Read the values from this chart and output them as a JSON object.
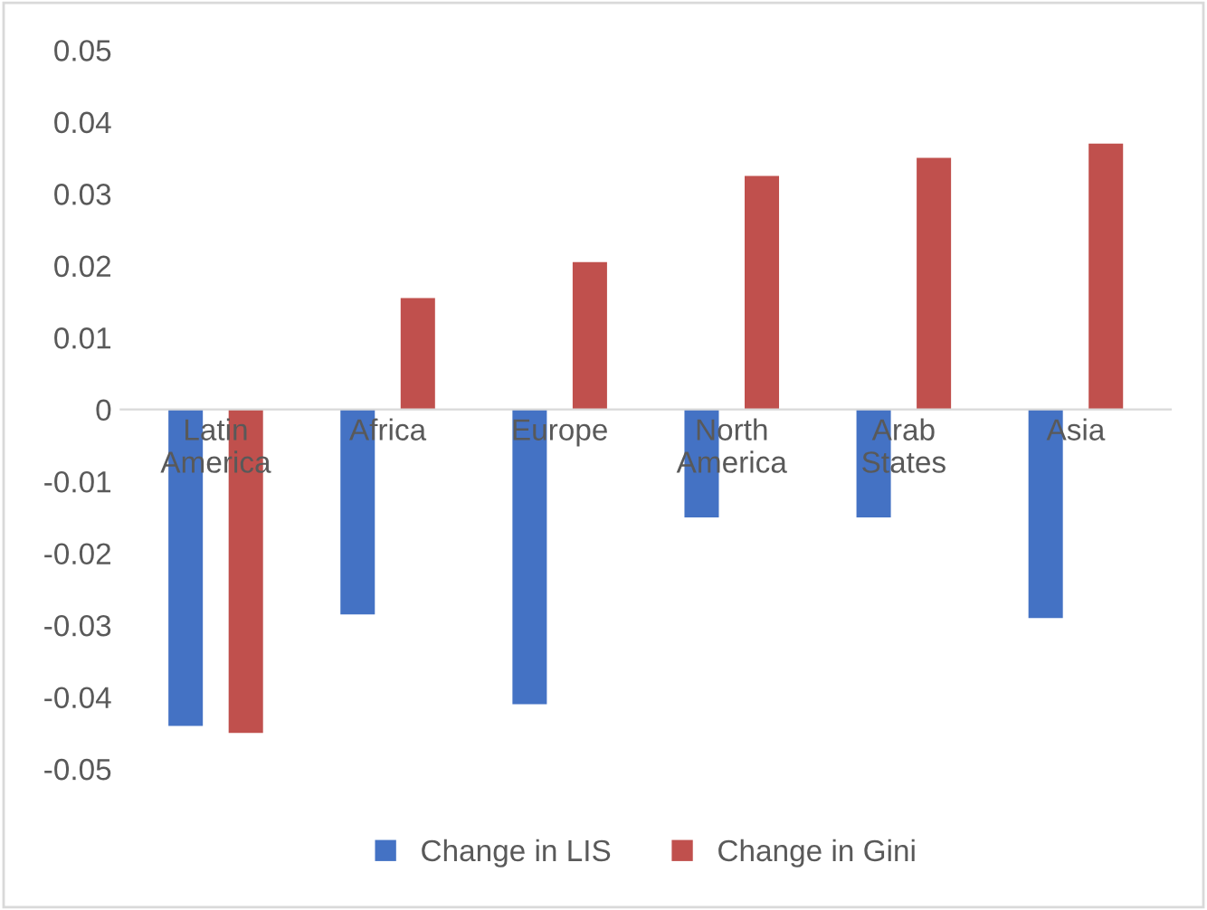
{
  "chart_data": {
    "type": "bar",
    "categories": [
      "Latin America",
      "Africa",
      "Europe",
      "North America",
      "Arab States",
      "Asia"
    ],
    "series": [
      {
        "name": "Change in LIS",
        "color": "#4472c4",
        "values": [
          -0.044,
          -0.0285,
          -0.041,
          -0.015,
          -0.015,
          -0.029
        ]
      },
      {
        "name": "Change in Gini",
        "color": "#c0504d",
        "values": [
          -0.045,
          0.0155,
          0.0205,
          0.0325,
          0.035,
          0.037
        ]
      }
    ],
    "ylim": [
      -0.05,
      0.05
    ],
    "yticks": [
      -0.05,
      -0.04,
      -0.03,
      -0.02,
      -0.01,
      0,
      0.01,
      0.02,
      0.03,
      0.04,
      0.05
    ],
    "grid": false,
    "legend": "bottom"
  }
}
